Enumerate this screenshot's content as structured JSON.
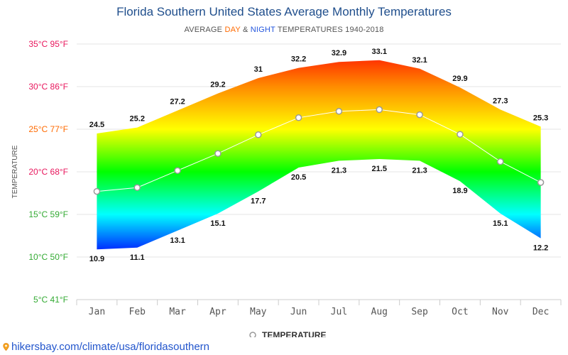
{
  "chart_data": {
    "type": "area",
    "title": "Florida Southern United States Average Monthly Temperatures",
    "subtitle": {
      "prefix": "AVERAGE ",
      "day": "DAY",
      "amp": " & ",
      "night": "NIGHT",
      "suffix": " TEMPERATURES 1940-2018"
    },
    "ylabel": "TEMPERATURE",
    "categories": [
      "Jan",
      "Feb",
      "Mar",
      "Apr",
      "May",
      "Jun",
      "Jul",
      "Aug",
      "Sep",
      "Oct",
      "Nov",
      "Dec"
    ],
    "ylim": [
      5,
      35
    ],
    "yticks": [
      5,
      10,
      15,
      20,
      25,
      30,
      35
    ],
    "ytick_labels": [
      "5°C 41°F",
      "10°C 50°F",
      "15°C 59°F",
      "20°C 68°F",
      "25°C 77°F",
      "30°C 86°F",
      "35°C 95°F"
    ],
    "series": [
      {
        "role": "day",
        "values": [
          24.5,
          25.2,
          27.2,
          29.2,
          31,
          32.2,
          32.9,
          33.1,
          32.1,
          29.9,
          27.3,
          25.3
        ]
      },
      {
        "role": "night",
        "values": [
          10.9,
          11.1,
          13.1,
          15.1,
          17.7,
          20.5,
          21.3,
          21.5,
          21.3,
          18.9,
          15.1,
          12.2
        ]
      },
      {
        "name": "TEMPERATURE",
        "role": "average",
        "values": [
          17.7,
          18.15,
          20.15,
          22.15,
          24.35,
          26.35,
          27.1,
          27.3,
          26.7,
          24.4,
          21.2,
          18.75
        ]
      }
    ],
    "legend": {
      "position": "bottom",
      "label": "TEMPERATURE"
    },
    "grid": true
  },
  "footer": {
    "url_text": "hikersbay.com/climate/usa/floridasouthern"
  },
  "colors": {
    "title": "#1f4e8c",
    "day_accent": "#ff6a00",
    "night_accent": "#2255dd",
    "link": "#2255cc",
    "gradient": [
      "#ff0000",
      "#ff8c00",
      "#ffff00",
      "#00ff00",
      "#00ffff",
      "#0000ff"
    ]
  }
}
